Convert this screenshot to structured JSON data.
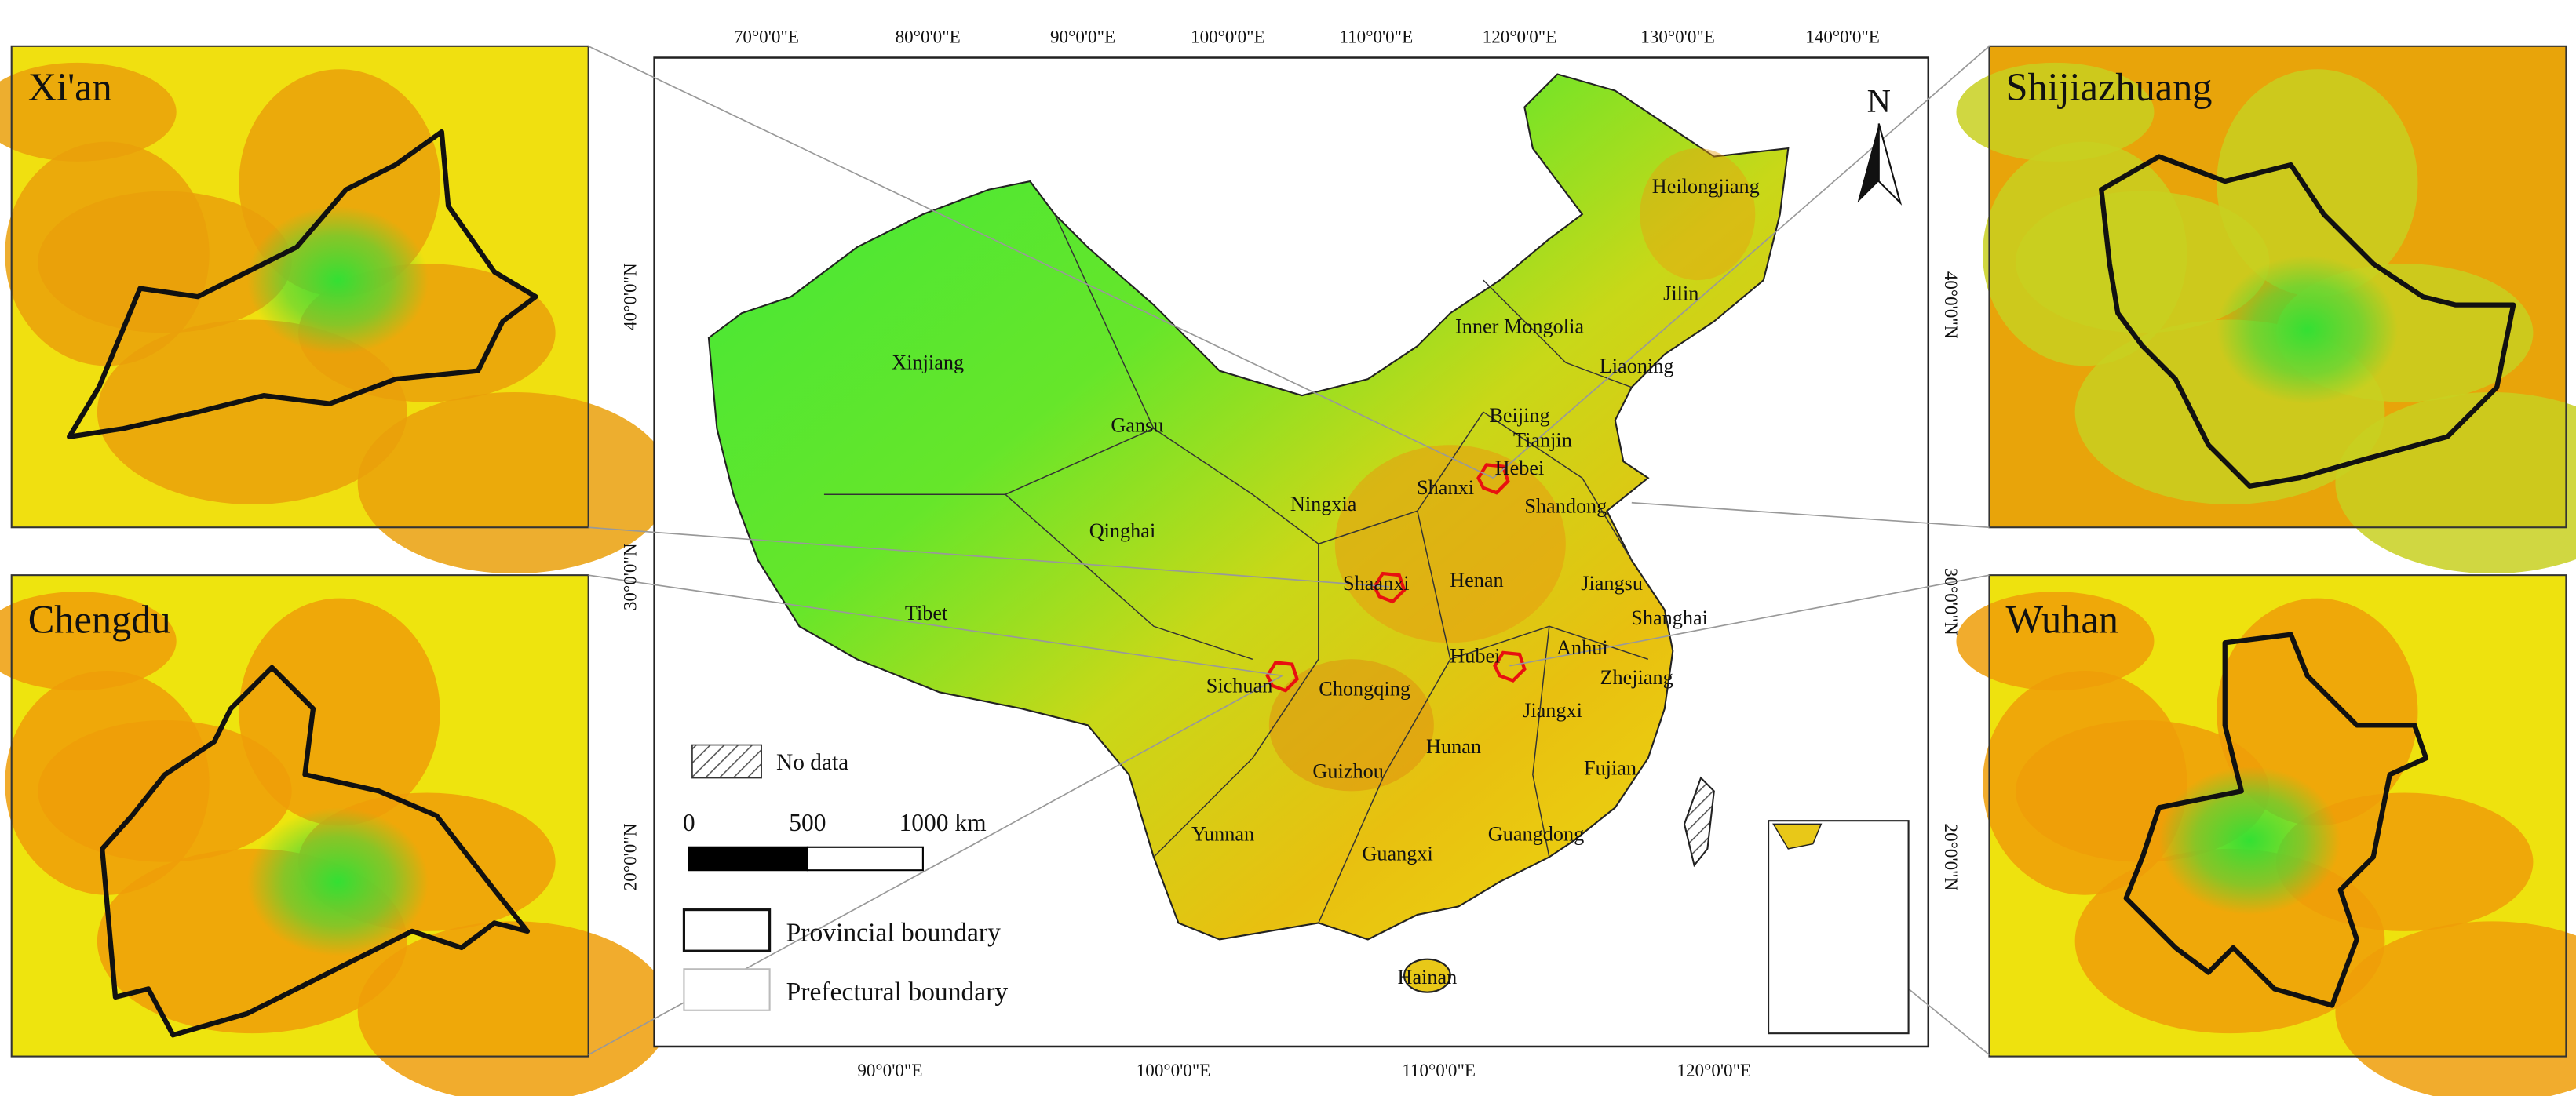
{
  "insets": [
    {
      "title": "Xi'an"
    },
    {
      "title": "Chengdu"
    },
    {
      "title": "Shijiazhuang"
    },
    {
      "title": "Wuhan"
    }
  ],
  "map": {
    "north": "N",
    "top_labels": [
      "70°0'0\"E",
      "80°0'0\"E",
      "90°0'0\"E",
      "100°0'0\"E",
      "110°0'0\"E",
      "120°0'0\"E",
      "130°0'0\"E",
      "140°0'0\"E"
    ],
    "bottom_labels": [
      "90°0'0\"E",
      "100°0'0\"E",
      "110°0'0\"E",
      "120°0'0\"E"
    ],
    "left_labels": [
      "40°0'0\"N",
      "30°0'0\"N",
      "20°0'0\"N"
    ],
    "right_labels": [
      "40°0'0\"N",
      "30°0'0\"N",
      "20°0'0\"N"
    ],
    "provinces": [
      "Heilongjiang",
      "Jilin",
      "Inner Mongolia",
      "Liaoning",
      "Xinjiang",
      "Beijing",
      "Tianjin",
      "Gansu",
      "Hebei",
      "Shanxi",
      "Ningxia",
      "Shandong",
      "Qinghai",
      "Shaanxi",
      "Henan",
      "Jiangsu",
      "Tibet",
      "Shanghai",
      "Anhui",
      "Hubei",
      "Zhejiang",
      "Sichuan",
      "Chongqing",
      "Jiangxi",
      "Hunan",
      "Fujian",
      "Guizhou",
      "Yunnan",
      "Guangdong",
      "Guangxi",
      "Hainan"
    ]
  },
  "legend": {
    "no_data": "No data",
    "scale": [
      "0",
      "500",
      "1000 km"
    ],
    "provincial": "Provincial boundary",
    "prefectural": "Prefectural boundary"
  }
}
